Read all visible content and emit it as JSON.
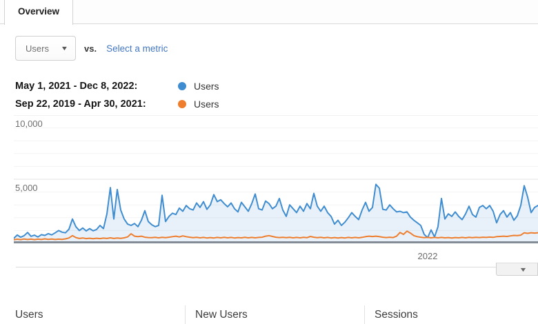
{
  "tabs": {
    "overview": "Overview"
  },
  "controls": {
    "metric_selector": {
      "value": "Users"
    },
    "vs_label": "vs.",
    "select_metric_link": "Select a metric"
  },
  "icons": {
    "caret_down": "▼"
  },
  "legend": [
    {
      "range": "May 1, 2021 - Dec 8, 2022:",
      "metric": "Users",
      "color": "#3f8dd0"
    },
    {
      "range": "Sep 22, 2019 - Apr 30, 2021:",
      "metric": "Users",
      "color": "#ee7e2d"
    }
  ],
  "chart_data": {
    "type": "line",
    "title": "Users over time — date range comparison",
    "xlabel": "",
    "ylabel": "Users",
    "ylim": [
      0,
      10000
    ],
    "gridline_interval": 1000,
    "grid": true,
    "legend_position": "above-chart",
    "y_ticks": [
      {
        "value": 10000,
        "label": "10,000"
      },
      {
        "value": 5000,
        "label": "5,000"
      }
    ],
    "x_tick_labels": [
      "2022"
    ],
    "series": [
      {
        "name": "Users (May 1, 2021 - Dec 8, 2022)",
        "color": "#3f8dd0",
        "area_fill": "rgba(63,141,208,0.12)",
        "values": [
          400,
          650,
          480,
          600,
          850,
          550,
          640,
          500,
          680,
          620,
          760,
          660,
          820,
          1000,
          870,
          830,
          1100,
          1900,
          1300,
          1000,
          1200,
          970,
          1150,
          980,
          1080,
          1400,
          1150,
          2300,
          4350,
          1900,
          4200,
          2600,
          1900,
          1500,
          1400,
          1550,
          1300,
          1800,
          2550,
          1700,
          1450,
          1300,
          1400,
          3750,
          1700,
          2100,
          2350,
          2250,
          2750,
          2500,
          2950,
          2700,
          2600,
          3150,
          2800,
          3250,
          2650,
          3000,
          3800,
          3250,
          3400,
          3100,
          2850,
          3150,
          2700,
          2450,
          3200,
          2850,
          2500,
          3100,
          3850,
          2700,
          2600,
          3300,
          3100,
          2700,
          2900,
          3500,
          2600,
          2100,
          3000,
          2700,
          2400,
          2900,
          2500,
          3100,
          2700,
          3900,
          2900,
          2500,
          2900,
          2400,
          2100,
          1500,
          1800,
          1400,
          1650,
          2000,
          2400,
          2100,
          1850,
          2600,
          3200,
          2500,
          2800,
          4600,
          4300,
          2650,
          2600,
          3000,
          2700,
          2450,
          2500,
          2400,
          2450,
          2050,
          1800,
          1600,
          1400,
          700,
          450,
          1050,
          500,
          1300,
          3500,
          1900,
          2300,
          2100,
          2450,
          2100,
          1850,
          2300,
          2900,
          2250,
          2050,
          2800,
          2950,
          2700,
          2950,
          2500,
          1600,
          2250,
          2550,
          2050,
          2400,
          1800,
          2150,
          2950,
          4500,
          3600,
          2400,
          2800,
          2950
        ]
      },
      {
        "name": "Users (Sep 22, 2019 - Apr 30, 2021)",
        "color": "#ee7e2d",
        "area_fill": null,
        "values": [
          280,
          320,
          290,
          340,
          300,
          330,
          290,
          330,
          300,
          350,
          310,
          340,
          300,
          330,
          310,
          350,
          420,
          600,
          450,
          380,
          420,
          370,
          400,
          360,
          400,
          370,
          410,
          380,
          430,
          380,
          420,
          390,
          430,
          500,
          750,
          560,
          520,
          560,
          480,
          450,
          440,
          470,
          430,
          470,
          440,
          480,
          520,
          560,
          500,
          580,
          520,
          480,
          440,
          470,
          430,
          460,
          420,
          450,
          420,
          460,
          430,
          470,
          430,
          460,
          420,
          450,
          430,
          470,
          430,
          460,
          430,
          460,
          480,
          560,
          600,
          540,
          480,
          450,
          470,
          440,
          470,
          430,
          460,
          430,
          470,
          440,
          540,
          480,
          440,
          470,
          430,
          460,
          420,
          450,
          420,
          450,
          420,
          460,
          430,
          460,
          430,
          470,
          520,
          560,
          530,
          560,
          520,
          480,
          450,
          480,
          450,
          560,
          850,
          700,
          950,
          800,
          600,
          520,
          480,
          440,
          470,
          430,
          460,
          430,
          460,
          430,
          450,
          420,
          450,
          430,
          460,
          430,
          470,
          440,
          470,
          450,
          480,
          460,
          490,
          470,
          520,
          540,
          560,
          540,
          580,
          620,
          600,
          640,
          820,
          780,
          830,
          800,
          830
        ]
      }
    ]
  },
  "footer": {
    "columns": [
      "Users",
      "New Users",
      "Sessions"
    ]
  }
}
